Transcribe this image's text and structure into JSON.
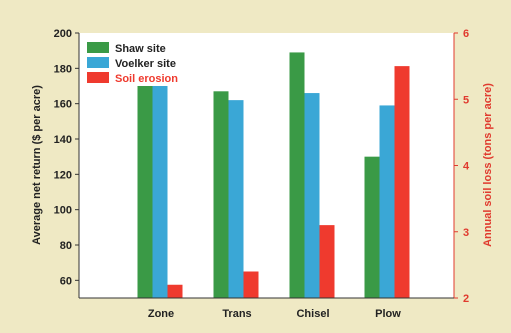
{
  "chart_data": {
    "type": "bar",
    "categories": [
      "Zone",
      "Trans",
      "Chisel",
      "Plow"
    ],
    "left_axis": {
      "label": "Average net return ($ per acre)",
      "range": [
        50,
        200
      ],
      "ticks": [
        60,
        80,
        100,
        120,
        140,
        160,
        180,
        200
      ]
    },
    "right_axis": {
      "label": "Annual soil loss (tons per acre)",
      "range": [
        2,
        6
      ],
      "ticks": [
        2,
        3,
        4,
        5,
        6
      ]
    },
    "series": [
      {
        "name": "Shaw site",
        "axis": "left",
        "color": "#3a9a46",
        "values": [
          170,
          167,
          189,
          130
        ]
      },
      {
        "name": "Voelker site",
        "axis": "left",
        "color": "#3aa7d6",
        "values": [
          170,
          162,
          166,
          159
        ]
      },
      {
        "name": "Soil erosion",
        "axis": "right",
        "color": "#ef3a2e",
        "values": [
          2.2,
          2.4,
          3.1,
          5.5
        ]
      }
    ],
    "legend_position": "top-left",
    "grid": false
  }
}
